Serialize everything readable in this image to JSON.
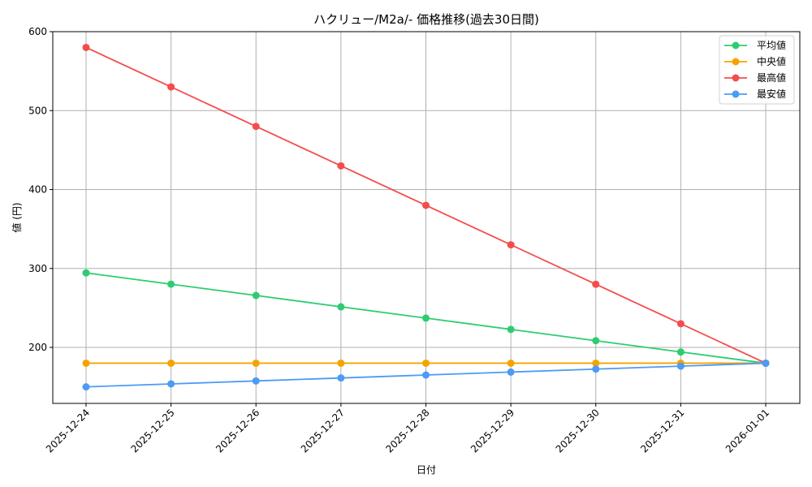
{
  "chart_data": {
    "type": "line",
    "title": "ハクリュー/M2a/- 価格推移(過去30日間)",
    "xlabel": "日付",
    "ylabel": "値 (円)",
    "categories": [
      "2025-12-24",
      "2025-12-25",
      "2025-12-26",
      "2025-12-27",
      "2025-12-28",
      "2025-12-29",
      "2025-12-30",
      "2025-12-31",
      "2026-01-01"
    ],
    "series": [
      {
        "name": "平均値",
        "color": "#2ecc71",
        "values": [
          294.4,
          280.1,
          265.8,
          251.4,
          237.1,
          222.8,
          208.5,
          194.2,
          180
        ]
      },
      {
        "name": "中央値",
        "color": "#f5a300",
        "values": [
          180,
          180,
          180,
          180,
          180,
          180,
          180,
          180,
          180
        ]
      },
      {
        "name": "最高値",
        "color": "#f44c4c",
        "values": [
          580,
          530,
          480,
          430,
          380,
          330,
          280,
          230,
          180
        ]
      },
      {
        "name": "最安値",
        "color": "#4c9bf4",
        "values": [
          150,
          153.75,
          157.5,
          161.25,
          165,
          168.75,
          172.5,
          176.25,
          180
        ]
      }
    ],
    "yticks": [
      200,
      300,
      400,
      500,
      600
    ],
    "ylim": [
      129,
      602
    ],
    "grid": true,
    "legend_position": "upper right"
  }
}
